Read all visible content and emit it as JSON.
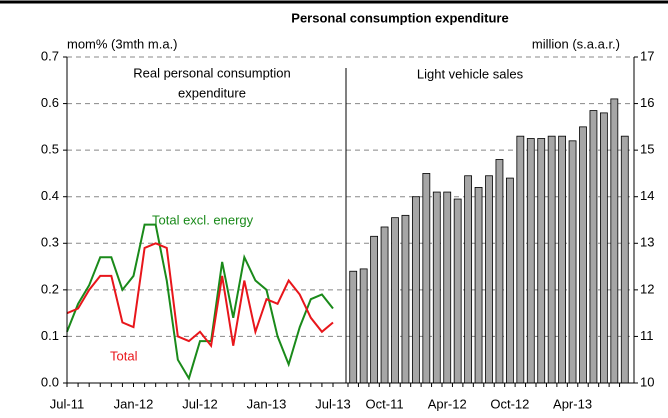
{
  "chart_data": [
    {
      "type": "line",
      "title": "Personal consumption expenditure",
      "ylabel": "mom% (3mth m.a.)",
      "annotation": [
        "Real personal consumption",
        "expenditure"
      ],
      "categories": [
        "Jul-11",
        null,
        null,
        null,
        null,
        null,
        "Jan-12",
        null,
        null,
        null,
        null,
        null,
        "Jul-12",
        null,
        null,
        null,
        null,
        null,
        "Jan-13",
        null,
        null,
        null,
        null,
        null,
        "Jul-13"
      ],
      "series": [
        {
          "name": "Total excl. energy",
          "color": "#1a8a1a",
          "values": [
            0.11,
            0.17,
            0.21,
            0.27,
            0.27,
            0.2,
            0.23,
            0.34,
            0.34,
            0.22,
            0.05,
            0.01,
            0.09,
            0.09,
            0.26,
            0.14,
            0.27,
            0.22,
            0.2,
            0.1,
            0.04,
            0.12,
            0.18,
            0.19,
            0.16
          ]
        },
        {
          "name": "Total",
          "color": "#e8161b",
          "values": [
            0.15,
            0.16,
            0.2,
            0.23,
            0.23,
            0.13,
            0.12,
            0.29,
            0.3,
            0.29,
            0.1,
            0.09,
            0.11,
            0.08,
            0.23,
            0.08,
            0.22,
            0.11,
            0.18,
            0.17,
            0.22,
            0.19,
            0.14,
            0.11,
            0.13
          ]
        }
      ],
      "ylim": [
        0,
        0.7
      ],
      "yticks": [
        {
          "value": 0,
          "label": "0.0"
        },
        0.1,
        0.2,
        0.3,
        0.4,
        0.5,
        0.6,
        0.7
      ],
      "grid": true
    },
    {
      "type": "bar",
      "ylabel": "million (s.a.a.r.)",
      "annotation": [
        "Light vehicle sales"
      ],
      "color": "#a6a6a6",
      "categories": [
        null,
        null,
        null,
        "Oct-11",
        null,
        null,
        null,
        null,
        null,
        "Apr-12",
        null,
        null,
        null,
        null,
        null,
        "Oct-12",
        null,
        null,
        null,
        null,
        null,
        "Apr-13",
        null,
        null,
        null,
        null,
        null
      ],
      "values": [
        12.4,
        12.45,
        13.15,
        13.35,
        13.55,
        13.6,
        14.0,
        14.5,
        14.1,
        14.1,
        13.95,
        14.45,
        14.2,
        14.45,
        14.8,
        14.4,
        15.3,
        15.25,
        15.25,
        15.3,
        15.3,
        15.2,
        15.5,
        15.85,
        15.8,
        16.1,
        15.3
      ],
      "ylim": [
        10,
        17
      ],
      "yticks": [
        10,
        11,
        12,
        13,
        14,
        15,
        16,
        17
      ],
      "grid": true
    }
  ]
}
